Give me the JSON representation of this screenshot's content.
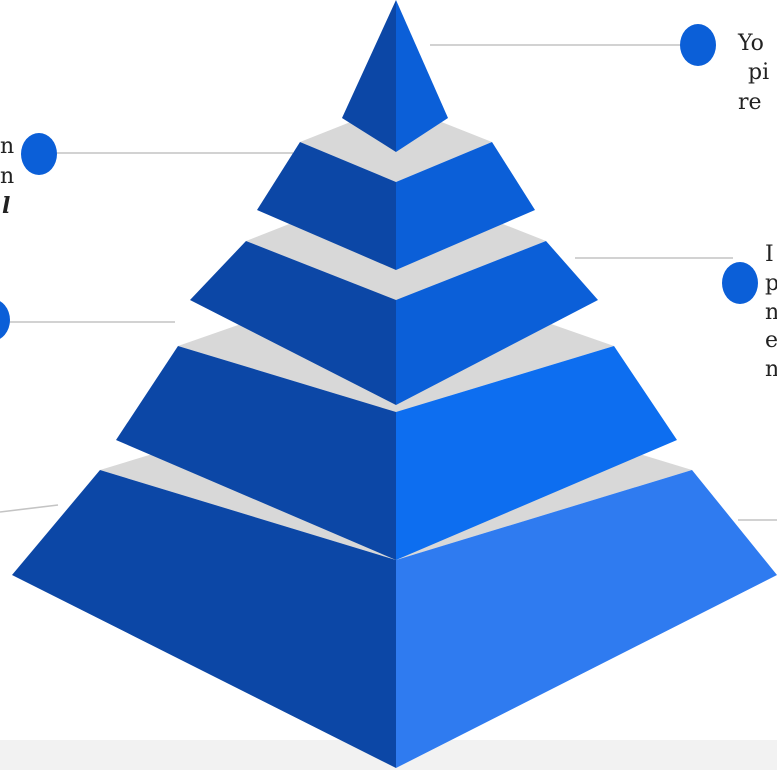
{
  "callouts": {
    "top_right_line1": "Yo",
    "top_right_line2": "pi",
    "top_right_line3": "re",
    "upper_left_line1": "n",
    "upper_left_line2": "n",
    "upper_left_line3": "l",
    "middle_right_line1": "I",
    "middle_right_line2": "p",
    "middle_right_line3": "n",
    "middle_right_line4": "e",
    "middle_right_line5": "n"
  },
  "colors": {
    "tier_dark_blue": "#0c47a6",
    "tier_mid_blue": "#0b5fd8",
    "tier_bright_blue": "#0d6ef0",
    "tier_light_blue": "#2f7bf0",
    "separator_gray": "#d8d8d8",
    "marker_blue": "#0b5fd8",
    "connector_gray": "#c4c4c4"
  }
}
